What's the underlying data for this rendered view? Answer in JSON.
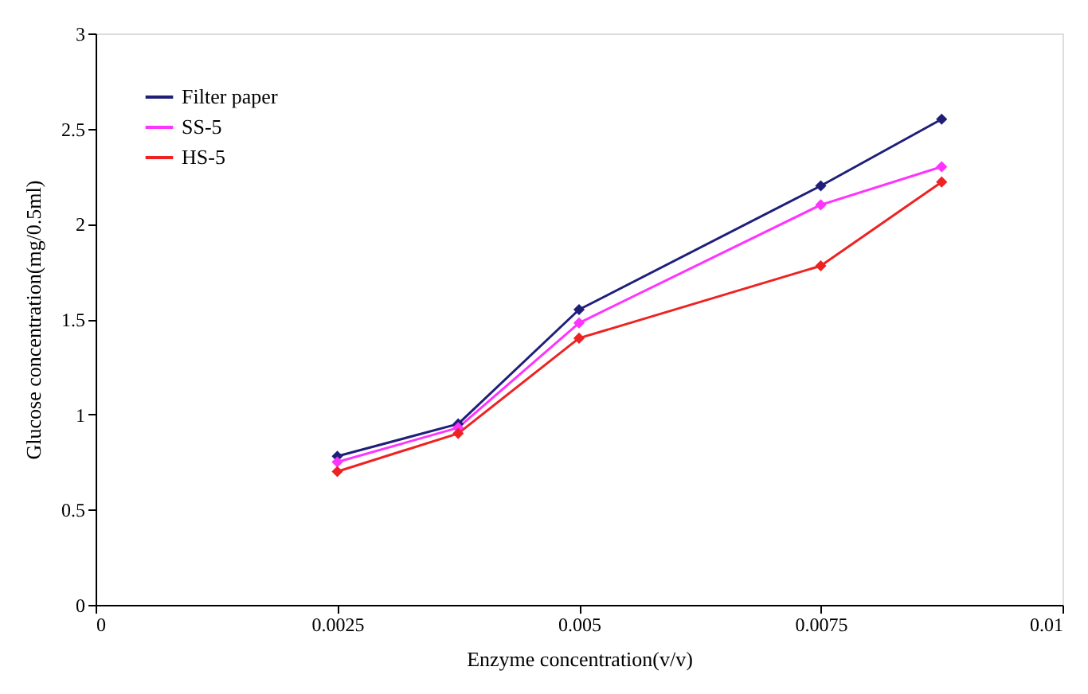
{
  "chart_data": {
    "type": "line",
    "xlabel": "Enzyme concentration(v/v)",
    "ylabel": "Glucose concentration(mg/0.5ml)",
    "x": [
      0.0025,
      0.00375,
      0.005,
      0.0075,
      0.00875
    ],
    "series": [
      {
        "name": "Filter paper",
        "color": "#1f1f7a",
        "values": [
          0.78,
          0.95,
          1.55,
          2.2,
          2.55
        ]
      },
      {
        "name": "SS-5",
        "color": "#ff33ff",
        "values": [
          0.75,
          0.93,
          1.48,
          2.1,
          2.3
        ]
      },
      {
        "name": "HS-5",
        "color": "#ee2222",
        "values": [
          0.7,
          0.9,
          1.4,
          1.78,
          2.22
        ]
      }
    ],
    "xlim": [
      0,
      0.01
    ],
    "xticks": [
      0,
      0.0025,
      0.005,
      0.0075,
      0.01
    ],
    "ylim": [
      0,
      3
    ],
    "yticks": [
      0,
      0.5,
      1,
      1.5,
      2,
      2.5,
      3
    ],
    "grid": false,
    "legend": "top left",
    "marker": "diamond",
    "line_style": "solid"
  }
}
